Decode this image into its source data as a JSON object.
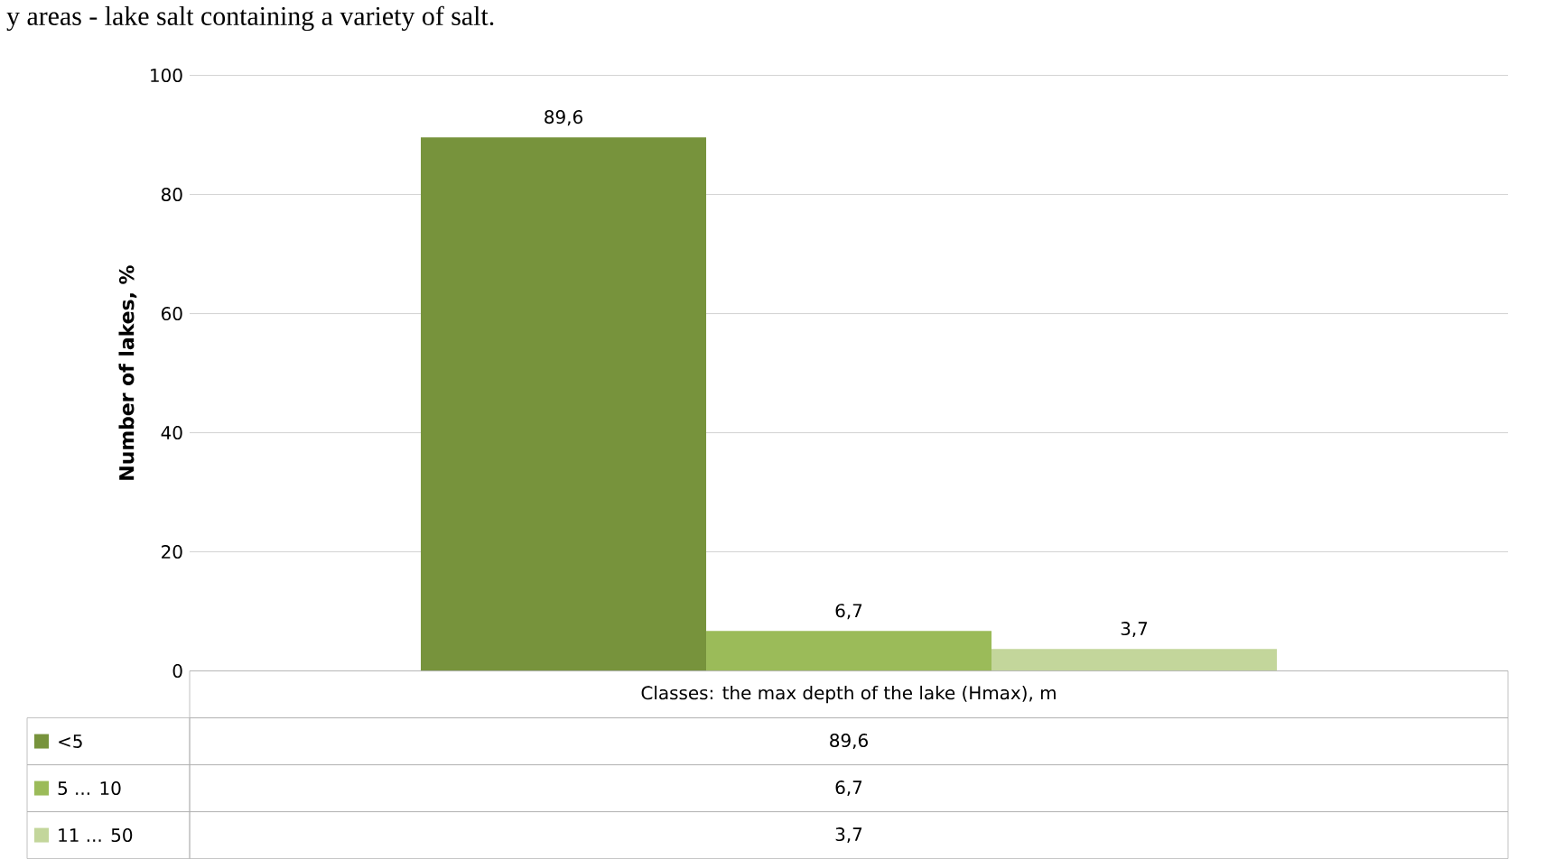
{
  "chart_data": {
    "type": "bar",
    "title": "y areas - lake salt containing a variety of salt.",
    "ylabel": "Number of lakes, %",
    "categories": [
      "Classes: the max depth of the lake (Hmax), m"
    ],
    "series": [
      {
        "name": "<5",
        "color": "#77933c",
        "values": [
          89.6
        ],
        "value_labels": [
          "89,6"
        ]
      },
      {
        "name": "5 ... 10",
        "color": "#9bbb59",
        "values": [
          6.7
        ],
        "value_labels": [
          "6,7"
        ]
      },
      {
        "name": "11 ... 50",
        "color": "#c3d69b",
        "values": [
          3.7
        ],
        "value_labels": [
          "3,7"
        ]
      }
    ],
    "ylim": [
      0,
      100
    ],
    "yticks": [
      0,
      20,
      40,
      60,
      80,
      100
    ],
    "grid": "y",
    "legend": "bottom"
  }
}
